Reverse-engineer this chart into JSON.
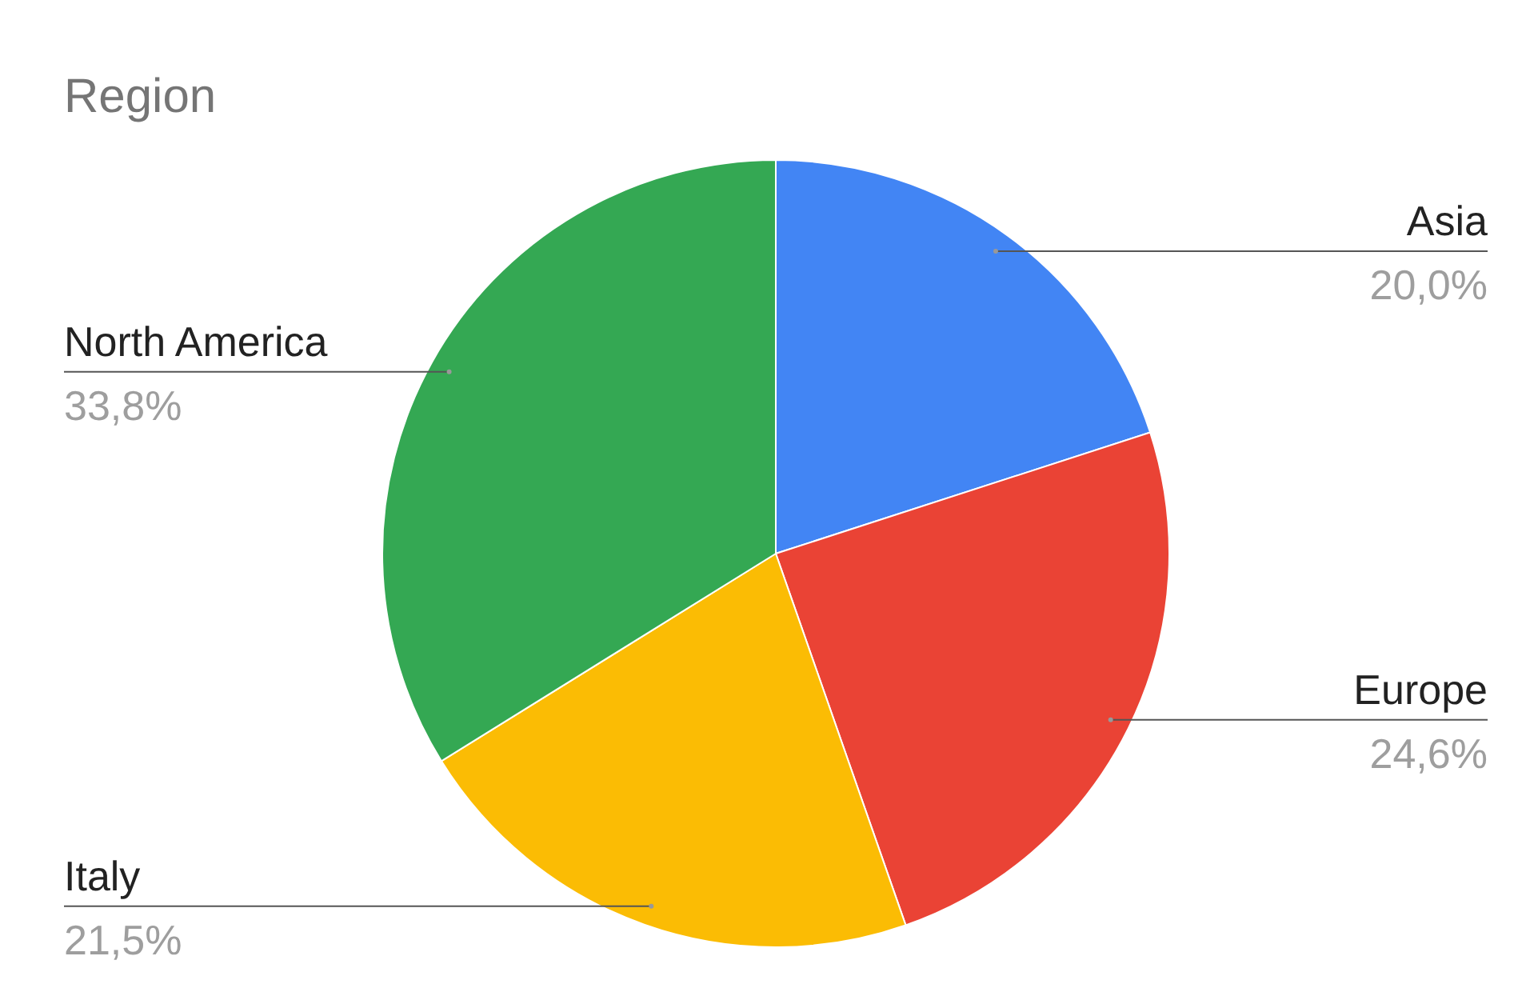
{
  "chart_data": {
    "type": "pie",
    "title": "Region",
    "categories": [
      "Asia",
      "Europe",
      "Italy",
      "North America"
    ],
    "values": [
      20.0,
      24.6,
      21.5,
      33.8
    ],
    "value_labels": [
      "20,0%",
      "24,6%",
      "21,5%",
      "33,8%"
    ],
    "colors": [
      "#4285f4",
      "#ea4335",
      "#fbbc04",
      "#34a853"
    ]
  }
}
